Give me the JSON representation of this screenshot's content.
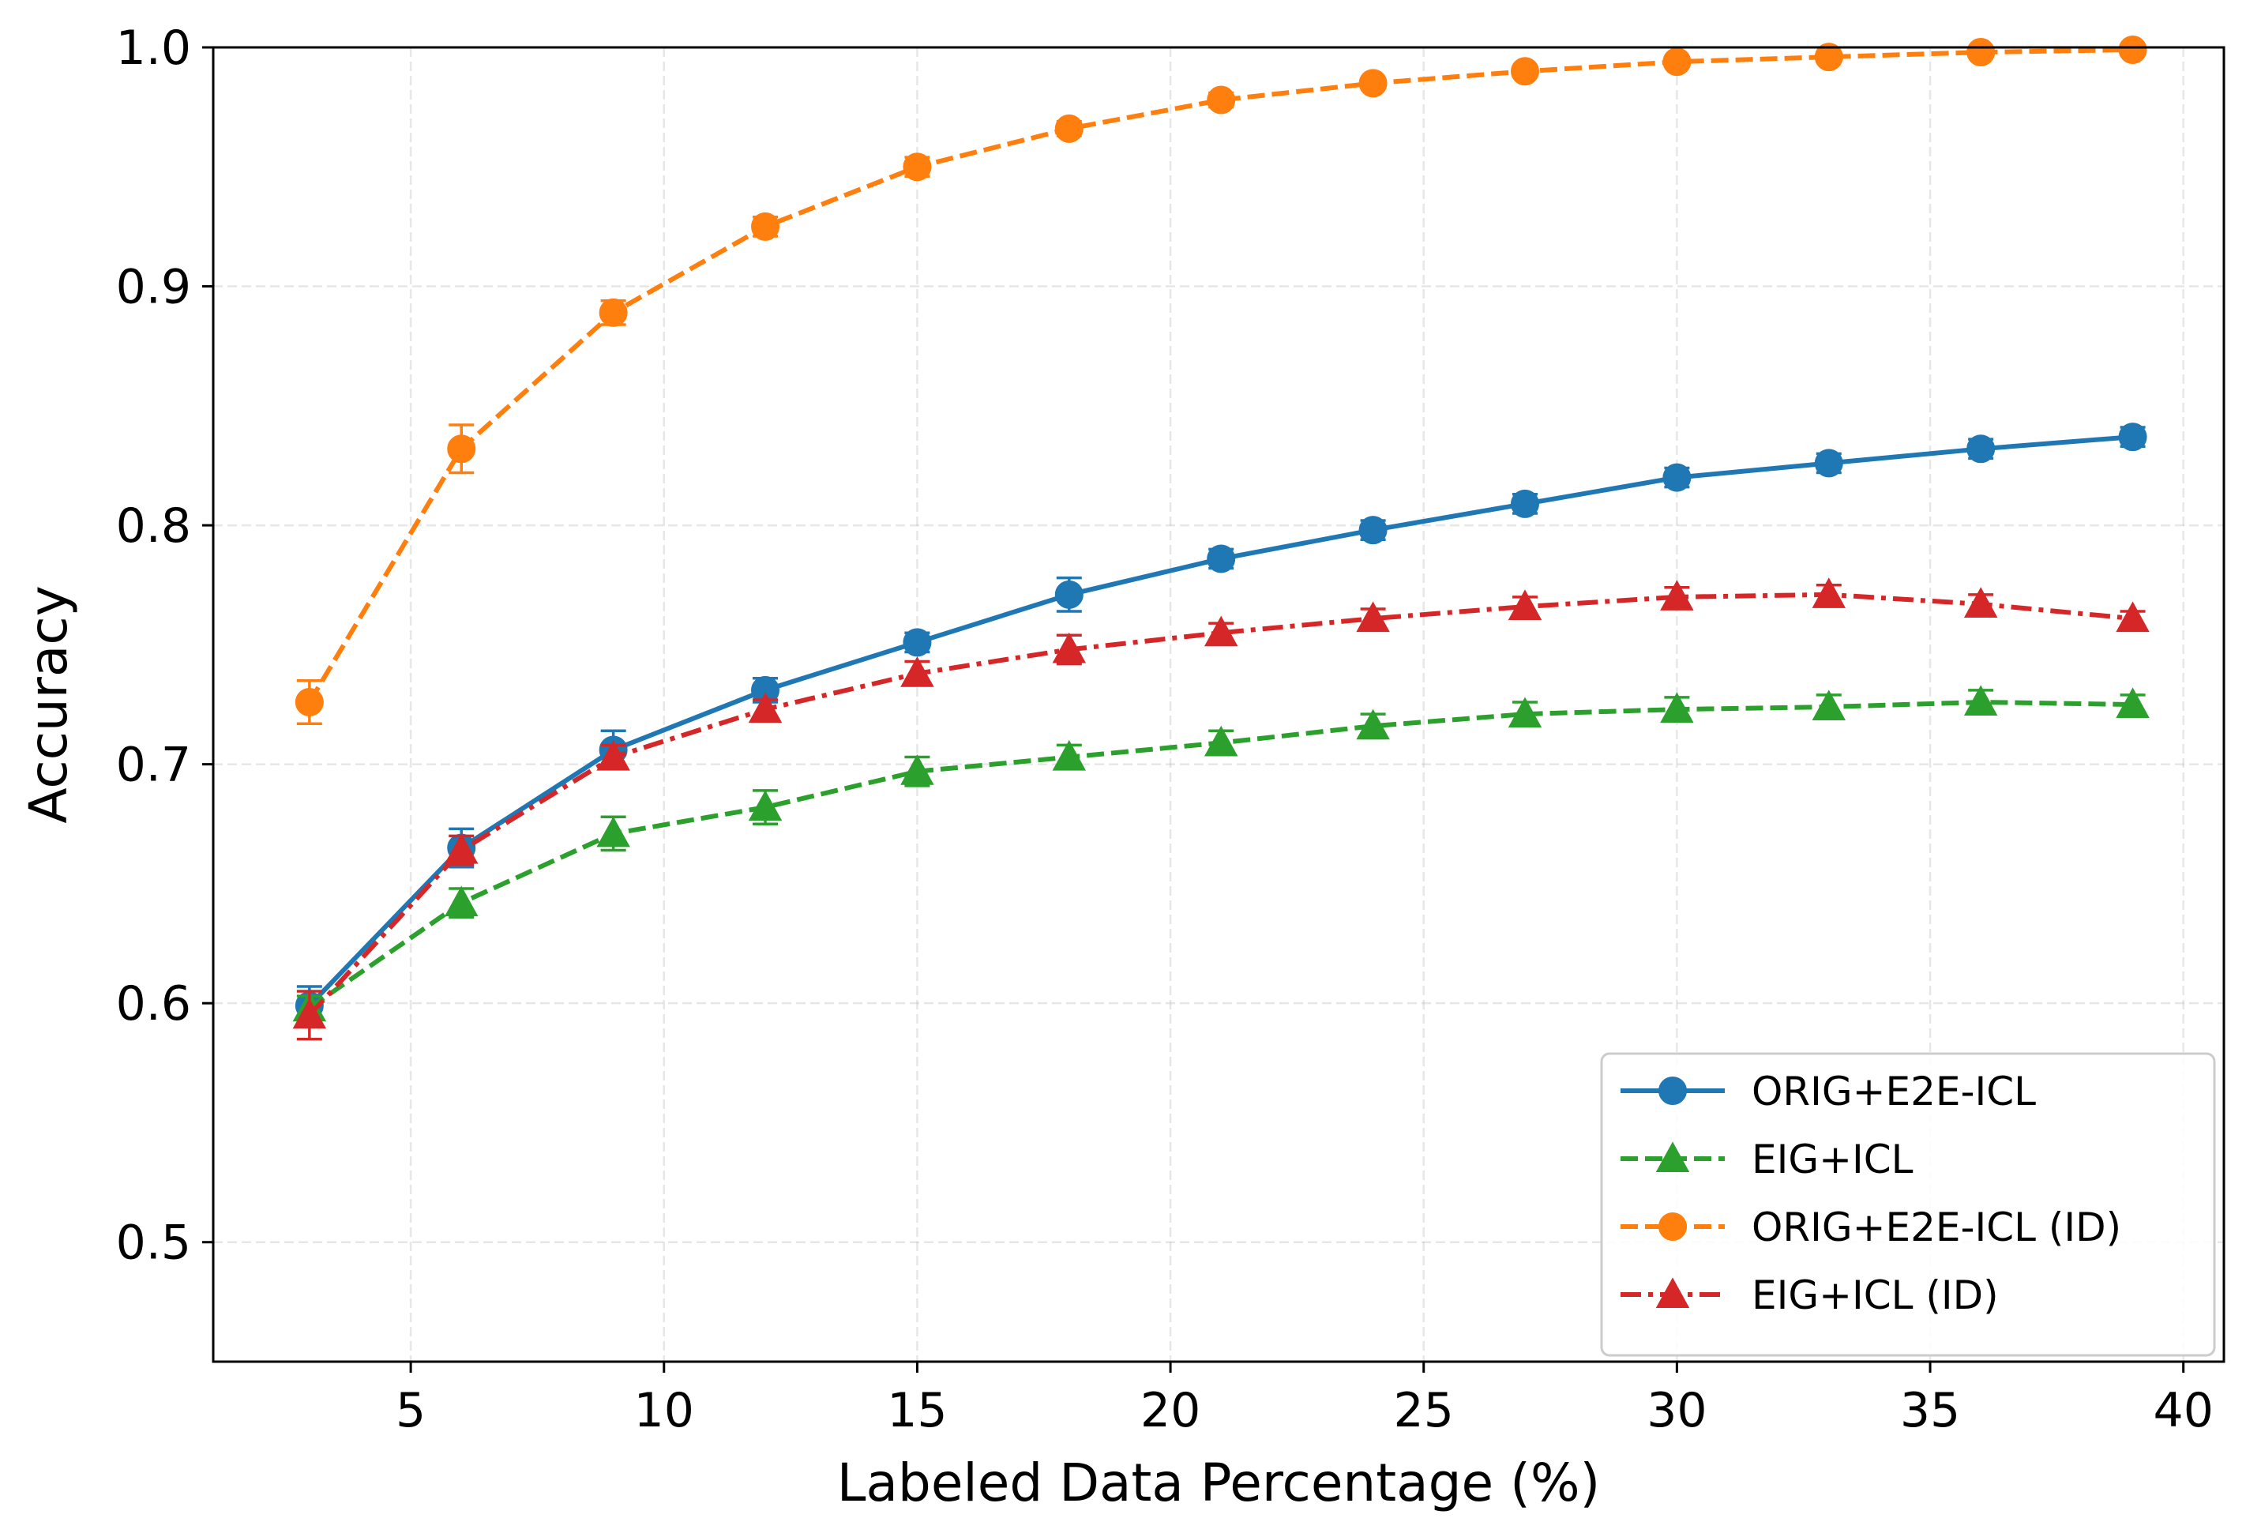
{
  "chart_data": {
    "type": "line",
    "title": "",
    "xlabel": "Labeled Data Percentage (%)",
    "ylabel": "Accuracy",
    "xlim": [
      1.1,
      40.8
    ],
    "ylim": [
      0.45,
      1.0
    ],
    "xticks": [
      5,
      10,
      15,
      20,
      25,
      30,
      35,
      40
    ],
    "yticks": [
      0.5,
      0.6,
      0.7,
      0.8,
      0.9,
      1.0
    ],
    "xtick_labels": [
      "5",
      "10",
      "15",
      "20",
      "25",
      "30",
      "35",
      "40"
    ],
    "ytick_labels": [
      "0.5",
      "0.6",
      "0.7",
      "0.8",
      "0.9",
      "1.0"
    ],
    "grid": true,
    "legend_position": "bottom-right",
    "x": [
      3,
      6,
      9,
      12,
      15,
      18,
      21,
      24,
      27,
      30,
      33,
      36,
      39
    ],
    "series": [
      {
        "name": "ORIG+E2E-ICL",
        "color": "#1f77b4",
        "line_style": "solid",
        "marker": "circle",
        "values": [
          0.599,
          0.665,
          0.706,
          0.731,
          0.751,
          0.771,
          0.786,
          0.798,
          0.809,
          0.82,
          0.826,
          0.832,
          0.837
        ],
        "errors": [
          0.008,
          0.008,
          0.008,
          0.005,
          0.004,
          0.007,
          0.004,
          0.004,
          0.004,
          0.004,
          0.004,
          0.004,
          0.004
        ]
      },
      {
        "name": "EIG+ICL",
        "color": "#2ca02c",
        "line_style": "dashed",
        "marker": "triangle",
        "values": [
          0.598,
          0.642,
          0.671,
          0.682,
          0.697,
          0.703,
          0.709,
          0.716,
          0.721,
          0.723,
          0.724,
          0.726,
          0.725
        ],
        "errors": [
          0.005,
          0.006,
          0.007,
          0.007,
          0.006,
          0.005,
          0.005,
          0.005,
          0.005,
          0.005,
          0.005,
          0.005,
          0.004
        ]
      },
      {
        "name": "ORIG+E2E-ICL (ID)",
        "color": "#ff7f0e",
        "line_style": "dashed",
        "marker": "circle",
        "values": [
          0.726,
          0.832,
          0.889,
          0.925,
          0.95,
          0.966,
          0.978,
          0.985,
          0.99,
          0.994,
          0.996,
          0.998,
          0.999
        ],
        "errors": [
          0.009,
          0.01,
          0.005,
          0.004,
          0.004,
          0.003,
          0.003,
          0.002,
          0.002,
          0.002,
          0.002,
          0.001,
          0.001
        ]
      },
      {
        "name": "EIG+ICL (ID)",
        "color": "#d62728",
        "line_style": "dashdot",
        "marker": "triangle",
        "values": [
          0.595,
          0.664,
          0.703,
          0.723,
          0.738,
          0.748,
          0.755,
          0.761,
          0.766,
          0.77,
          0.771,
          0.767,
          0.761
        ],
        "errors": [
          0.01,
          0.006,
          0.005,
          0.004,
          0.005,
          0.006,
          0.004,
          0.004,
          0.004,
          0.004,
          0.004,
          0.004,
          0.003
        ]
      }
    ]
  }
}
